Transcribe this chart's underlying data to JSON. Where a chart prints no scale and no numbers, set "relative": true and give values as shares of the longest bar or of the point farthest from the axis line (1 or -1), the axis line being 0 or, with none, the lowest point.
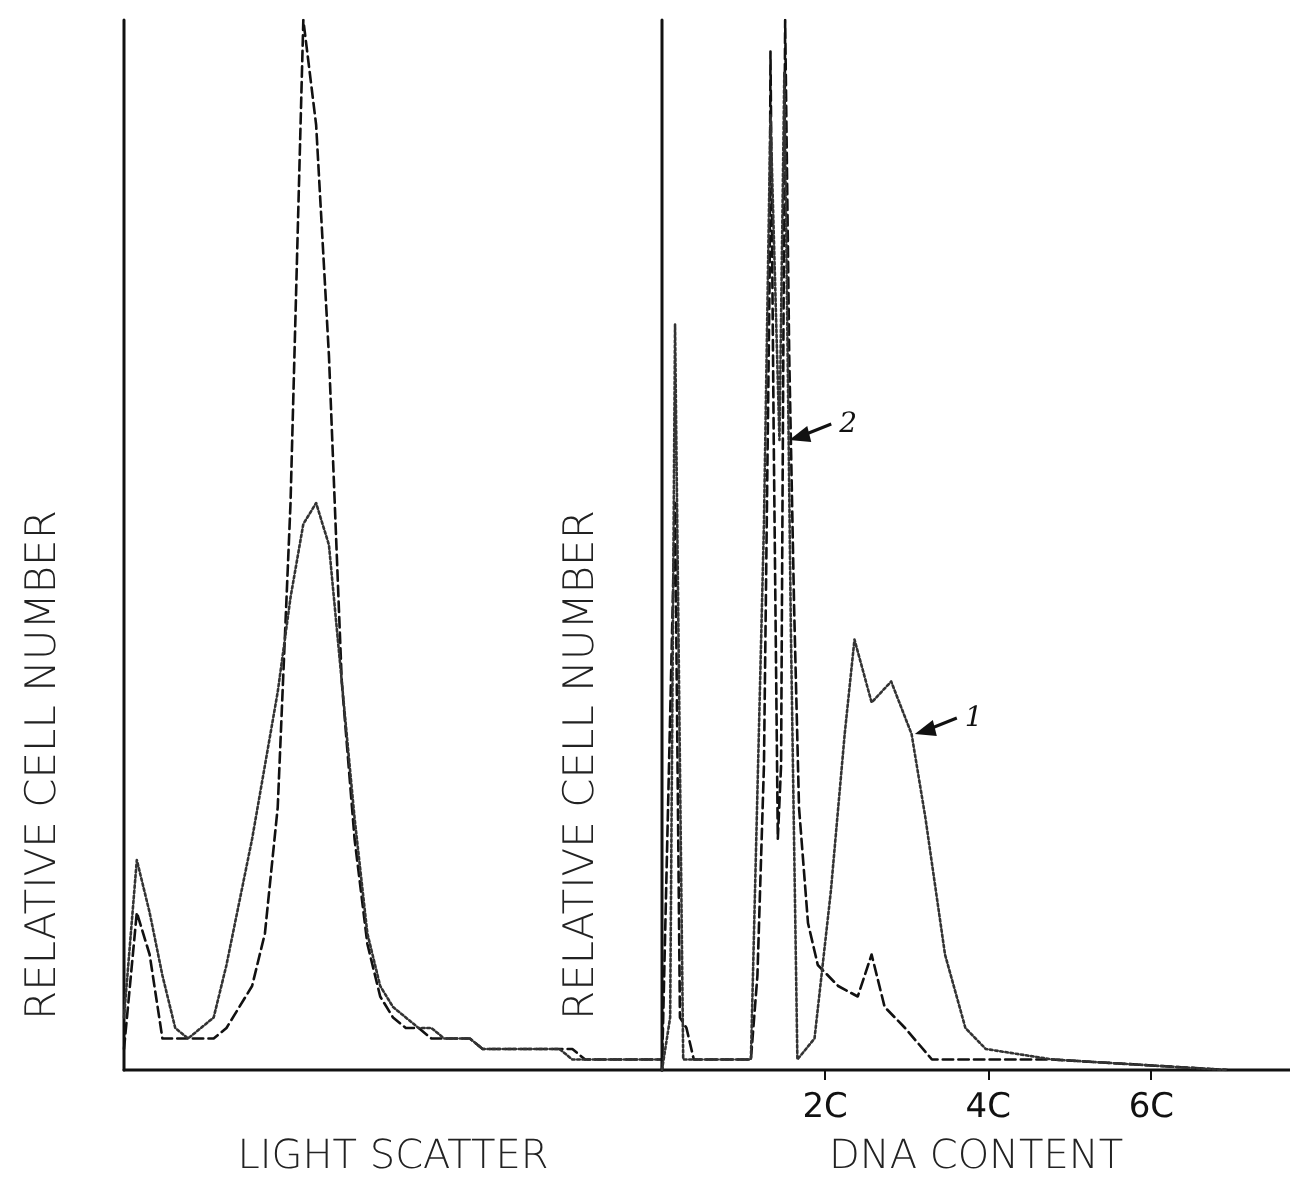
{
  "chart_data": [
    {
      "type": "line",
      "relative": true,
      "xlabel": "LIGHT SCATTER",
      "ylabel": "RELATIVE CELL NUMBER",
      "tick_labels": false,
      "marker": "none",
      "categories": [
        null,
        null,
        null,
        null,
        null,
        null,
        null,
        null,
        null,
        null,
        null,
        null,
        null,
        null,
        null,
        null,
        null,
        null,
        null,
        null,
        null,
        null,
        null,
        null,
        null,
        null,
        null,
        null,
        null,
        null,
        null,
        null,
        null,
        null,
        null,
        null,
        null,
        null,
        null,
        null,
        null,
        null,
        null
      ],
      "series": [
        {
          "color": "#111111",
          "line_style": "dashed",
          "values": [
            0.02,
            0.15,
            0.11,
            0.03,
            0.03,
            0.03,
            0.03,
            0.03,
            0.04,
            0.06,
            0.08,
            0.13,
            0.25,
            0.54,
            1.0,
            0.9,
            0.68,
            0.37,
            0.22,
            0.12,
            0.07,
            0.05,
            0.04,
            0.04,
            0.03,
            0.03,
            0.03,
            0.03,
            0.02,
            0.02,
            0.02,
            0.02,
            0.02,
            0.02,
            0.02,
            0.02,
            0.01,
            0.01,
            0.01,
            0.01,
            0.01,
            0.01,
            0.01
          ]
        },
        {
          "color": "#333333",
          "line_style": "dotted",
          "values": [
            0.05,
            0.2,
            0.15,
            0.09,
            0.04,
            0.03,
            0.04,
            0.05,
            0.1,
            0.16,
            0.22,
            0.29,
            0.36,
            0.45,
            0.52,
            0.54,
            0.5,
            0.37,
            0.24,
            0.13,
            0.08,
            0.06,
            0.05,
            0.04,
            0.04,
            0.03,
            0.03,
            0.03,
            0.02,
            0.02,
            0.02,
            0.02,
            0.02,
            0.02,
            0.02,
            0.01,
            0.01,
            0.01,
            0.01,
            0.01,
            0.01,
            0.01,
            0.01
          ]
        }
      ]
    },
    {
      "type": "line",
      "relative": true,
      "xlabel": "DNA CONTENT",
      "ylabel": "RELATIVE CELL NUMBER",
      "tick_labels": "x",
      "marker": "none",
      "xlim": [
        0,
        7.7
      ],
      "xticks": [
        {
          "value": 2,
          "label": "2C"
        },
        {
          "value": 4,
          "label": "4C"
        },
        {
          "value": 6,
          "label": "6C"
        }
      ],
      "annotations": [
        {
          "text": "2",
          "x": 1.56,
          "y": 0.6
        },
        {
          "text": "1",
          "x": 3.1,
          "y": 0.32
        }
      ],
      "series": [
        {
          "color": "#111111",
          "line_style": "dashed",
          "x": [
            0,
            0.16,
            0.22,
            0.3,
            0.39,
            1.09,
            1.17,
            1.25,
            1.32,
            1.33,
            1.37,
            1.42,
            1.46,
            1.51,
            1.56,
            1.62,
            1.68,
            1.79,
            1.91,
            2.16,
            2.4,
            2.57,
            2.73,
            2.98,
            3.31,
            3.97,
            4.79,
            6.93
          ],
          "values": [
            0,
            0.54,
            0.05,
            0.04,
            0.01,
            0.01,
            0.09,
            0.29,
            0.76,
            0.97,
            0.6,
            0.22,
            0.29,
            1.0,
            0.68,
            0.44,
            0.25,
            0.14,
            0.1,
            0.08,
            0.07,
            0.11,
            0.06,
            0.04,
            0.01,
            0.01,
            0.01,
            0
          ]
        },
        {
          "color": "#333333",
          "line_style": "dotted",
          "x": [
            0,
            0.1,
            0.16,
            0.26,
            1.09,
            1.25,
            1.33,
            1.44,
            1.5,
            1.58,
            1.66,
            1.87,
            2.07,
            2.24,
            2.36,
            2.57,
            2.81,
            3.06,
            3.23,
            3.47,
            3.72,
            3.97,
            4.79,
            6.93
          ],
          "values": [
            0,
            0.05,
            0.71,
            0.01,
            0.01,
            0.52,
            0.91,
            0.6,
            0.95,
            0.42,
            0.01,
            0.03,
            0.17,
            0.32,
            0.41,
            0.35,
            0.37,
            0.32,
            0.24,
            0.11,
            0.04,
            0.02,
            0.01,
            0
          ]
        }
      ]
    }
  ]
}
